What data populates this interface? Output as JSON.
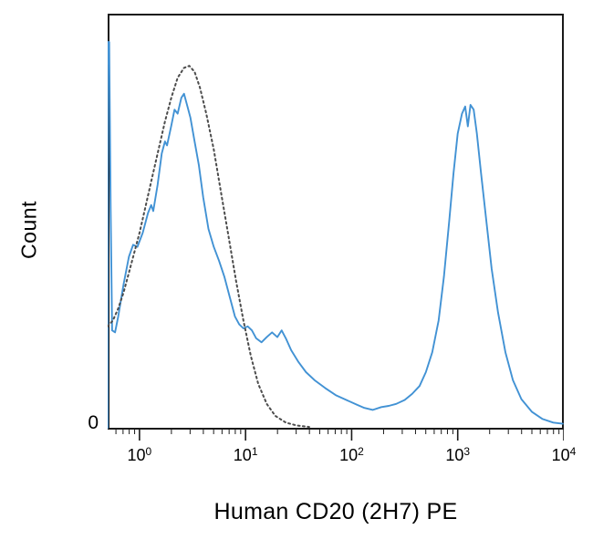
{
  "figure": {
    "background": "#ffffff",
    "frame_color": "#1a1a1a",
    "text_color": "#000000"
  },
  "chart_data": {
    "type": "line",
    "subtype": "flow-cytometry-histogram",
    "title": "",
    "xlabel": "Human CD20 (2H7) PE",
    "ylabel": "Count",
    "x_scale": "log10",
    "xlog_range": [
      -0.3,
      4
    ],
    "ylim": [
      0,
      1
    ],
    "y_tick_label": "0",
    "x_tick_base": "10",
    "x_tick_exponents": [
      0,
      1,
      2,
      3,
      4
    ],
    "grid": false,
    "legend": "none",
    "frame_color": "#1a1a1a",
    "series": [
      {
        "name": "blue_solid_curve",
        "style": "solid",
        "color": "#4292d4",
        "points": [
          [
            -0.3,
            0.0
          ],
          [
            -0.3,
            0.97
          ],
          [
            -0.285,
            0.97
          ],
          [
            -0.272,
            0.55
          ],
          [
            -0.258,
            0.245
          ],
          [
            -0.23,
            0.24
          ],
          [
            -0.2,
            0.28
          ],
          [
            -0.15,
            0.36
          ],
          [
            -0.1,
            0.43
          ],
          [
            -0.06,
            0.46
          ],
          [
            -0.02,
            0.455
          ],
          [
            0.03,
            0.49
          ],
          [
            0.08,
            0.54
          ],
          [
            0.11,
            0.56
          ],
          [
            0.13,
            0.545
          ],
          [
            0.17,
            0.61
          ],
          [
            0.21,
            0.69
          ],
          [
            0.24,
            0.72
          ],
          [
            0.26,
            0.71
          ],
          [
            0.3,
            0.76
          ],
          [
            0.33,
            0.8
          ],
          [
            0.36,
            0.79
          ],
          [
            0.395,
            0.83
          ],
          [
            0.42,
            0.84
          ],
          [
            0.45,
            0.81
          ],
          [
            0.48,
            0.78
          ],
          [
            0.52,
            0.72
          ],
          [
            0.56,
            0.66
          ],
          [
            0.6,
            0.58
          ],
          [
            0.65,
            0.5
          ],
          [
            0.7,
            0.455
          ],
          [
            0.75,
            0.42
          ],
          [
            0.8,
            0.38
          ],
          [
            0.85,
            0.33
          ],
          [
            0.9,
            0.28
          ],
          [
            0.94,
            0.26
          ],
          [
            0.98,
            0.25
          ],
          [
            1.02,
            0.255
          ],
          [
            1.06,
            0.245
          ],
          [
            1.1,
            0.225
          ],
          [
            1.15,
            0.215
          ],
          [
            1.2,
            0.228
          ],
          [
            1.25,
            0.24
          ],
          [
            1.3,
            0.228
          ],
          [
            1.34,
            0.245
          ],
          [
            1.38,
            0.225
          ],
          [
            1.43,
            0.195
          ],
          [
            1.5,
            0.165
          ],
          [
            1.57,
            0.14
          ],
          [
            1.65,
            0.12
          ],
          [
            1.75,
            0.1
          ],
          [
            1.85,
            0.082
          ],
          [
            1.95,
            0.07
          ],
          [
            2.05,
            0.058
          ],
          [
            2.12,
            0.05
          ],
          [
            2.2,
            0.045
          ],
          [
            2.28,
            0.052
          ],
          [
            2.35,
            0.055
          ],
          [
            2.42,
            0.06
          ],
          [
            2.5,
            0.07
          ],
          [
            2.57,
            0.085
          ],
          [
            2.64,
            0.105
          ],
          [
            2.7,
            0.14
          ],
          [
            2.76,
            0.19
          ],
          [
            2.82,
            0.27
          ],
          [
            2.87,
            0.38
          ],
          [
            2.92,
            0.52
          ],
          [
            2.96,
            0.64
          ],
          [
            3.0,
            0.74
          ],
          [
            3.04,
            0.79
          ],
          [
            3.07,
            0.808
          ],
          [
            3.095,
            0.758
          ],
          [
            3.12,
            0.812
          ],
          [
            3.15,
            0.8
          ],
          [
            3.18,
            0.74
          ],
          [
            3.22,
            0.64
          ],
          [
            3.27,
            0.52
          ],
          [
            3.32,
            0.4
          ],
          [
            3.38,
            0.29
          ],
          [
            3.45,
            0.19
          ],
          [
            3.52,
            0.12
          ],
          [
            3.6,
            0.072
          ],
          [
            3.7,
            0.04
          ],
          [
            3.8,
            0.022
          ],
          [
            3.9,
            0.013
          ],
          [
            3.99,
            0.01
          ]
        ]
      },
      {
        "name": "gray_dotted_curve",
        "style": "dotted",
        "color": "#4d4d4d",
        "points": [
          [
            -0.3,
            0.255
          ],
          [
            -0.25,
            0.27
          ],
          [
            -0.2,
            0.3
          ],
          [
            -0.15,
            0.34
          ],
          [
            -0.1,
            0.39
          ],
          [
            -0.05,
            0.44
          ],
          [
            0.0,
            0.49
          ],
          [
            0.06,
            0.56
          ],
          [
            0.12,
            0.63
          ],
          [
            0.18,
            0.7
          ],
          [
            0.24,
            0.77
          ],
          [
            0.3,
            0.83
          ],
          [
            0.36,
            0.88
          ],
          [
            0.42,
            0.905
          ],
          [
            0.47,
            0.91
          ],
          [
            0.52,
            0.895
          ],
          [
            0.57,
            0.855
          ],
          [
            0.63,
            0.79
          ],
          [
            0.7,
            0.7
          ],
          [
            0.77,
            0.59
          ],
          [
            0.84,
            0.48
          ],
          [
            0.91,
            0.37
          ],
          [
            0.98,
            0.27
          ],
          [
            1.05,
            0.18
          ],
          [
            1.12,
            0.11
          ],
          [
            1.2,
            0.06
          ],
          [
            1.28,
            0.03
          ],
          [
            1.38,
            0.013
          ],
          [
            1.48,
            0.006
          ],
          [
            1.6,
            0.002
          ]
        ]
      }
    ]
  }
}
